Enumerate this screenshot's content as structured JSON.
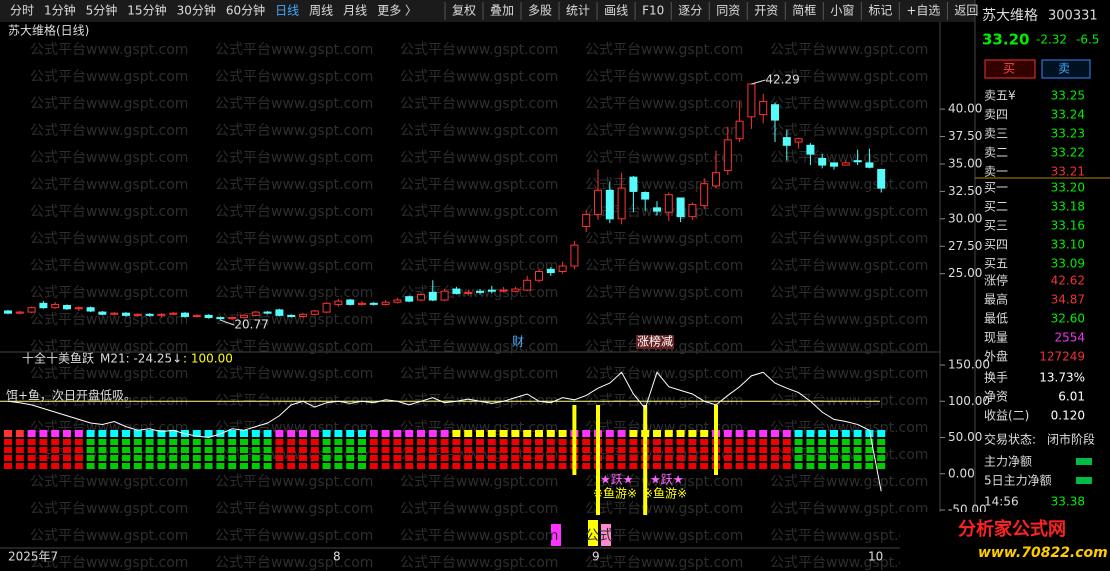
{
  "toolbar": {
    "left": [
      "分时",
      "1分钟",
      "5分钟",
      "15分钟",
      "30分钟",
      "60分钟",
      "日线",
      "周线",
      "月线",
      "更多 〉"
    ],
    "active": "日线",
    "right": [
      "复权",
      "叠加",
      "多股",
      "统计",
      "画线",
      "F10",
      "逐分",
      "同资",
      "开资",
      "简框",
      "小窗",
      "标记",
      "+自选",
      "返回"
    ]
  },
  "watermark": "公式平台www.gspt.com",
  "chart_data": [
    {
      "type": "candlestick",
      "title": "苏大维格(日线)",
      "up_color": "#ff3232",
      "down_color": "#54fcfc",
      "ylim": [
        18.5,
        46.3
      ],
      "yticks": [
        {
          "value": 25,
          "label": "25.00"
        },
        {
          "value": 27.5,
          "label": "27.50"
        },
        {
          "value": 30,
          "label": "30.00"
        },
        {
          "value": 32.5,
          "label": "32.50"
        },
        {
          "value": 35,
          "label": "35.00"
        },
        {
          "value": 37.5,
          "label": "37.50"
        },
        {
          "value": 40,
          "label": "40.00"
        }
      ],
      "ohlc": [
        [
          21.6,
          21.4,
          21.7,
          21.3
        ],
        [
          21.4,
          21.5,
          21.6,
          21.3
        ],
        [
          21.5,
          21.9,
          22.0,
          21.4
        ],
        [
          22.3,
          21.9,
          22.5,
          21.8
        ],
        [
          21.9,
          22.2,
          22.4,
          21.8
        ],
        [
          22.1,
          21.8,
          22.2,
          21.7
        ],
        [
          21.8,
          21.9,
          22.0,
          21.6
        ],
        [
          21.9,
          21.6,
          22.0,
          21.5
        ],
        [
          21.5,
          21.3,
          21.6,
          21.2
        ],
        [
          21.3,
          21.4,
          21.5,
          21.2
        ],
        [
          21.4,
          21.2,
          21.5,
          21.1
        ],
        [
          21.2,
          21.3,
          21.4,
          21.1
        ],
        [
          21.3,
          21.2,
          21.4,
          21.1
        ],
        [
          21.2,
          21.3,
          21.4,
          21.0
        ],
        [
          21.3,
          21.4,
          21.5,
          21.2
        ],
        [
          21.4,
          21.1,
          21.5,
          21.0
        ],
        [
          21.1,
          21.2,
          21.3,
          21.0
        ],
        [
          21.2,
          21.0,
          21.3,
          20.9
        ],
        [
          21.0,
          20.9,
          21.1,
          20.77
        ],
        [
          20.9,
          21.0,
          21.1,
          20.8
        ],
        [
          21.0,
          21.2,
          21.3,
          20.9
        ],
        [
          21.2,
          21.5,
          21.6,
          21.1
        ],
        [
          21.5,
          21.4,
          21.6,
          21.3
        ],
        [
          21.7,
          21.2,
          21.8,
          21.1
        ],
        [
          21.2,
          21.1,
          21.3,
          21.0
        ],
        [
          21.1,
          21.3,
          21.4,
          21.0
        ],
        [
          21.3,
          21.6,
          21.7,
          21.2
        ],
        [
          21.5,
          22.3,
          22.4,
          21.4
        ],
        [
          22.2,
          22.5,
          22.7,
          22.0
        ],
        [
          22.6,
          22.2,
          22.7,
          22.1
        ],
        [
          22.2,
          22.3,
          22.5,
          22.1
        ],
        [
          22.3,
          22.2,
          22.4,
          22.1
        ],
        [
          22.2,
          22.4,
          22.6,
          22.1
        ],
        [
          22.4,
          22.6,
          22.8,
          22.3
        ],
        [
          22.9,
          22.5,
          23.0,
          22.4
        ],
        [
          22.6,
          23.1,
          23.3,
          22.5
        ],
        [
          23.3,
          22.6,
          24.4,
          22.5
        ],
        [
          22.6,
          23.4,
          23.6,
          22.5
        ],
        [
          23.6,
          23.2,
          23.8,
          23.1
        ],
        [
          23.2,
          23.3,
          23.5,
          23.0
        ],
        [
          23.4,
          23.3,
          23.6,
          23.1
        ],
        [
          23.5,
          23.4,
          23.9,
          23.2
        ],
        [
          23.5,
          23.5,
          23.8,
          23.3
        ],
        [
          23.4,
          23.6,
          23.8,
          23.3
        ],
        [
          23.5,
          24.4,
          24.8,
          23.4
        ],
        [
          24.4,
          25.2,
          25.4,
          24.2
        ],
        [
          25.4,
          25.1,
          25.6,
          24.8
        ],
        [
          25.2,
          25.7,
          26.1,
          25.0
        ],
        [
          25.7,
          27.6,
          28.0,
          25.4
        ],
        [
          29.3,
          30.4,
          30.8,
          28.8
        ],
        [
          30.4,
          32.6,
          34.5,
          29.9
        ],
        [
          32.6,
          30.0,
          33.4,
          29.6
        ],
        [
          30.0,
          32.8,
          34.2,
          29.5
        ],
        [
          33.8,
          32.5,
          33.9,
          30.6
        ],
        [
          32.4,
          31.8,
          32.5,
          30.7
        ],
        [
          31.0,
          30.7,
          31.6,
          30.3
        ],
        [
          30.6,
          32.2,
          32.4,
          29.8
        ],
        [
          31.9,
          30.2,
          31.9,
          29.7
        ],
        [
          30.2,
          31.3,
          31.5,
          29.9
        ],
        [
          31.2,
          33.2,
          33.7,
          30.9
        ],
        [
          33.0,
          34.2,
          36.2,
          32.8
        ],
        [
          34.4,
          37.2,
          38.4,
          34.0
        ],
        [
          37.3,
          38.9,
          40.7,
          37.0
        ],
        [
          39.3,
          42.29,
          42.29,
          38.2
        ],
        [
          39.5,
          40.7,
          41.4,
          38.7
        ],
        [
          40.4,
          39.0,
          40.6,
          37.0
        ],
        [
          37.4,
          36.7,
          38.1,
          35.3
        ],
        [
          37.0,
          37.3,
          37.4,
          36.4
        ],
        [
          36.7,
          35.9,
          36.9,
          34.9
        ],
        [
          35.5,
          34.9,
          35.9,
          34.6
        ],
        [
          35.1,
          34.8,
          35.1,
          34.5
        ],
        [
          34.9,
          35.1,
          35.3,
          34.9
        ],
        [
          35.3,
          35.2,
          36.3,
          34.9
        ],
        [
          35.1,
          34.7,
          36.4,
          34.6
        ],
        [
          34.5,
          32.8,
          34.5,
          32.4
        ]
      ],
      "high_label": {
        "value": 42.29,
        "label": "42.29",
        "index": 63
      },
      "low_label": {
        "value": 20.77,
        "label": "20.77",
        "index": 18
      },
      "annotations": [
        "财",
        "涨榜减"
      ],
      "x_labels": [
        "2025年7",
        "8",
        "9",
        "10"
      ]
    },
    {
      "type": "indicator",
      "title": "十全十美鱼跃",
      "value_label": "M21: -24.25↓",
      "ref_label": ": 100.00",
      "note": "饵+鱼，次日开盘低吸。",
      "signal_texts": [
        "★跃★",
        "※鱼游※"
      ],
      "ylim": [
        -50,
        150
      ],
      "yticks": [
        {
          "value": -50,
          "label": "-50.00"
        },
        {
          "value": 0,
          "label": "0.00"
        },
        {
          "value": 50,
          "label": "50.00"
        },
        {
          "value": 100,
          "label": "100.00"
        },
        {
          "value": 150,
          "label": "150.00"
        }
      ],
      "reference": 100,
      "line_color": "#ffffff",
      "ref_color": "#ffff80",
      "signal_color": "#ffff00",
      "values": [
        100,
        98,
        95,
        90,
        85,
        80,
        75,
        70,
        68,
        72,
        65,
        60,
        62,
        58,
        60,
        55,
        52,
        50,
        55,
        62,
        60,
        65,
        70,
        80,
        95,
        100,
        92,
        98,
        100,
        97,
        100,
        98,
        102,
        100,
        95,
        100,
        105,
        98,
        100,
        103,
        100,
        97,
        100,
        105,
        110,
        100,
        98,
        105,
        102,
        108,
        118,
        125,
        140,
        110,
        90,
        140,
        120,
        115,
        110,
        100,
        95,
        108,
        120,
        135,
        140,
        125,
        118,
        112,
        100,
        85,
        75,
        72,
        68,
        60,
        -24.25
      ],
      "top_colors": [
        "#f33",
        "#f33",
        "#f3f",
        "#f3f",
        "#f3f",
        "#f3f",
        "#f3f",
        "#0ff",
        "#0ff",
        "#0ff",
        "#0ff",
        "#0ff",
        "#0ff",
        "#0ff",
        "#0ff",
        "#0ff",
        "#0ff",
        "#0ff",
        "#0ff",
        "#0ff",
        "#0ff",
        "#0ff",
        "#0ff",
        "#f3f",
        "#f3f",
        "#f3f",
        "#f3f",
        "#0ff",
        "#0ff",
        "#0ff",
        "#0ff",
        "#f3f",
        "#f3f",
        "#f3f",
        "#f3f",
        "#f3f",
        "#f3f",
        "#f3f",
        "#ff0",
        "#ff0",
        "#ff0",
        "#ff0",
        "#ff0",
        "#ff0",
        "#ff0",
        "#ff0",
        "#ff0",
        "#ff0",
        "#f3f",
        "#f3f",
        "#f3f",
        "#f3f",
        "#f3f",
        "#ff0",
        "#ff0",
        "#ff0",
        "#ff0",
        "#ff0",
        "#ff0",
        "#ff0",
        "#f3f",
        "#f3f",
        "#f3f",
        "#f3f",
        "#f3f",
        "#f3f",
        "#f3f",
        "#0ff",
        "#0ff",
        "#0ff",
        "#0ff",
        "#0ff",
        "#0ff",
        "#0ff",
        "#0ff"
      ],
      "base_colors": [
        "#e00",
        "#e00",
        "#e00",
        "#e00",
        "#e00",
        "#e00",
        "#e00",
        "#0c0",
        "#0c0",
        "#0c0",
        "#0c0",
        "#0c0",
        "#0c0",
        "#0c0",
        "#0c0",
        "#0c0",
        "#0c0",
        "#0c0",
        "#0c0",
        "#0c0",
        "#0c0",
        "#0c0",
        "#0c0",
        "#e00",
        "#e00",
        "#e00",
        "#e00",
        "#0c0",
        "#0c0",
        "#0c0",
        "#0c0",
        "#e00",
        "#e00",
        "#e00",
        "#e00",
        "#e00",
        "#e00",
        "#e00",
        "#e00",
        "#e00",
        "#e00",
        "#e00",
        "#e00",
        "#e00",
        "#e00",
        "#e00",
        "#e00",
        "#e00",
        "#e00",
        "#e00",
        "#e00",
        "#e00",
        "#e00",
        "#e00",
        "#e00",
        "#e00",
        "#e00",
        "#e00",
        "#e00",
        "#e00",
        "#e00",
        "#e00",
        "#e00",
        "#e00",
        "#e00",
        "#e00",
        "#e00",
        "#0c0",
        "#0c0",
        "#0c0",
        "#0c0",
        "#0c0",
        "#0c0",
        "#0c0",
        "#0c0"
      ],
      "signals": [
        48,
        50,
        54,
        60
      ]
    }
  ],
  "quote": {
    "name": "苏大维格",
    "code": "300331",
    "price": "33.20",
    "change": "-2.32",
    "pct": "-6.5",
    "buy": "买",
    "sell": "卖",
    "asks": [
      [
        "卖五¥",
        "33.25"
      ],
      [
        "卖四",
        "33.24"
      ],
      [
        "卖三",
        "33.23"
      ],
      [
        "卖二",
        "33.22"
      ],
      [
        "卖一",
        "33.21"
      ]
    ],
    "bids": [
      [
        "买一",
        "33.20"
      ],
      [
        "买二",
        "33.18"
      ],
      [
        "买三",
        "33.16"
      ],
      [
        "买四",
        "33.10"
      ],
      [
        "买五",
        "33.09"
      ]
    ],
    "stats": [
      [
        "涨停",
        "42.62"
      ],
      [
        "最高",
        "34.87"
      ],
      [
        "最低",
        "32.60"
      ],
      [
        "现量",
        "2554"
      ],
      [
        "外盘",
        "127249"
      ]
    ],
    "stats2": [
      [
        "换手",
        "13.73%"
      ],
      [
        "净资",
        "6.01"
      ],
      [
        "收益(二)",
        "0.120"
      ]
    ],
    "status_label": "交易状态:",
    "status": "闭市阶段",
    "flows": [
      "主力净额",
      "5日主力净额"
    ],
    "time": "14:56",
    "last": "33.38"
  },
  "logo": {
    "name": "分析家公式网",
    "url": "www.70822.com"
  }
}
